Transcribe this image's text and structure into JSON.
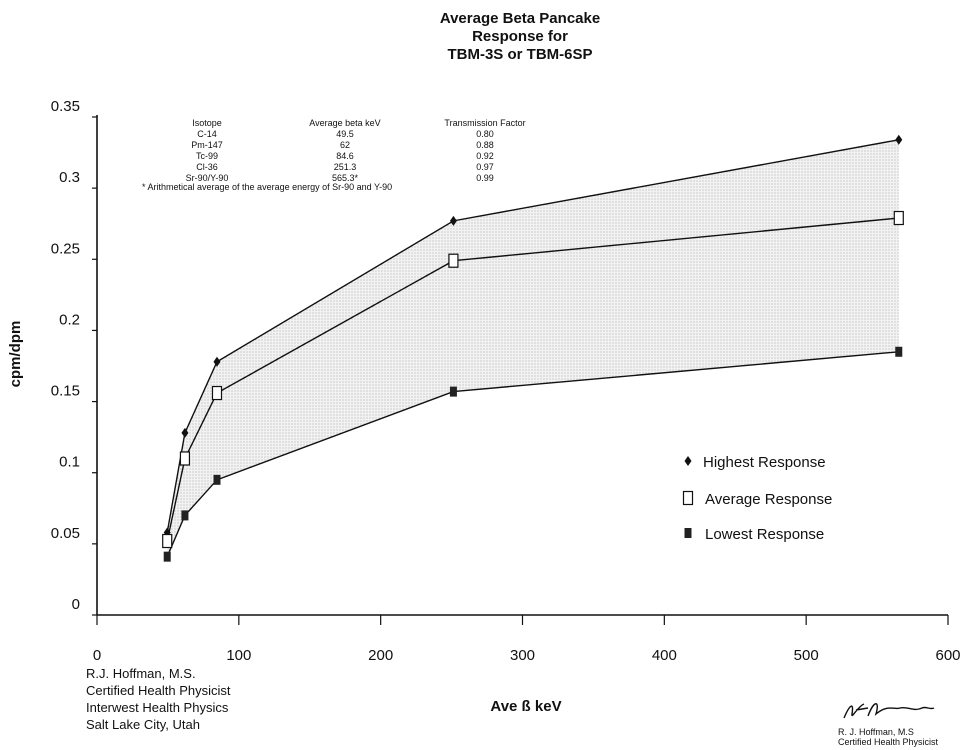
{
  "chart_data": {
    "type": "line",
    "title_lines": [
      "Average Beta Pancake",
      "Response for",
      "TBM-3S or TBM-6SP"
    ],
    "xlabel": "Ave ß keV",
    "ylabel": "cpm/dpm",
    "xlim": [
      0,
      600
    ],
    "ylim": [
      0,
      0.35
    ],
    "x_ticks": [
      0,
      100,
      200,
      300,
      400,
      500,
      600
    ],
    "y_ticks": [
      0,
      0.05,
      0.1,
      0.15,
      0.2,
      0.25,
      0.3,
      0.35
    ],
    "y_tick_labels": [
      "0",
      "0.05",
      "0.1",
      "0.15",
      "0.2",
      "0.25",
      "0.3",
      "0.35"
    ],
    "x": [
      49.5,
      62,
      84.6,
      251.3,
      565.3
    ],
    "series": [
      {
        "name": "Highest Response",
        "marker": "diamond",
        "values": [
          0.058,
          0.128,
          0.178,
          0.277,
          0.334
        ]
      },
      {
        "name": "Average Response",
        "marker": "open-square",
        "values": [
          0.052,
          0.11,
          0.156,
          0.249,
          0.279
        ]
      },
      {
        "name": "Lowest Response",
        "marker": "filled-square",
        "values": [
          0.041,
          0.07,
          0.095,
          0.157,
          0.185
        ]
      }
    ],
    "band_between": [
      "Highest Response",
      "Lowest Response"
    ],
    "legend_position": "right",
    "grid": false,
    "inset_table": {
      "headers": [
        "Isotope",
        "Average beta keV",
        "Transmission Factor"
      ],
      "rows": [
        [
          "C-14",
          "49.5",
          "0.80"
        ],
        [
          "Pm-147",
          "62",
          "0.88"
        ],
        [
          "Tc-99",
          "84.6",
          "0.92"
        ],
        [
          "Cl-36",
          "251.3",
          "0.97"
        ],
        [
          "Sr-90/Y-90",
          "565.3*",
          "0.99"
        ]
      ],
      "footnote": "* Arithmetical average of the average energy of Sr-90 and Y-90"
    }
  },
  "footer": {
    "author_lines": [
      "R.J. Hoffman, M.S.",
      "Certified Health Physicist",
      "Interwest Health Physics",
      "Salt Lake City, Utah"
    ],
    "signature_lines": [
      "R. J. Hoffman, M.S",
      "Certified Health Physicist"
    ]
  }
}
